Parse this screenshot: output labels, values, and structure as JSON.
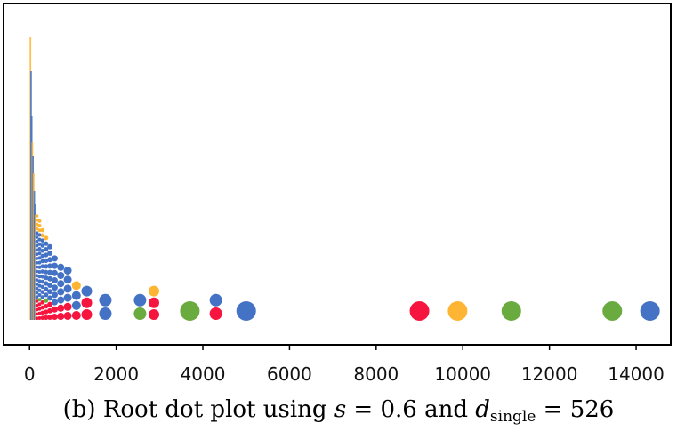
{
  "caption": {
    "prefix": "(b) Root dot plot using ",
    "s_var": "s",
    "s_eq": " = 0.6 and ",
    "d_var": "d",
    "d_sub": "single",
    "d_eq": " = 526"
  },
  "chart_data": {
    "type": "scatter",
    "xlim": [
      -600,
      14800
    ],
    "x_ticks": [
      0,
      2000,
      4000,
      6000,
      8000,
      10000,
      12000,
      14000
    ],
    "x_tick_labels": [
      "0",
      "2000",
      "4000",
      "6000",
      "8000",
      "10000",
      "12000",
      "14000"
    ],
    "y_axis_visible": false,
    "grid": false,
    "colors": {
      "blue": "#4472C4",
      "red": "#F5153E",
      "green": "#6AAB3F",
      "orange": "#FFB534"
    },
    "columns": [
      {
        "x": 1750,
        "r": 7,
        "dots": [
          "blue",
          "blue"
        ]
      },
      {
        "x": 2550,
        "r": 7,
        "dots": [
          "green",
          "blue"
        ]
      },
      {
        "x": 2870,
        "r": 6,
        "dots": [
          "red",
          "red",
          "orange"
        ]
      },
      {
        "x": 3700,
        "r": 11,
        "dots": [
          "green"
        ]
      },
      {
        "x": 4300,
        "r": 7,
        "dots": [
          "red",
          "blue"
        ]
      },
      {
        "x": 5000,
        "r": 11,
        "dots": [
          "blue"
        ]
      },
      {
        "x": 9000,
        "r": 11,
        "dots": [
          "red"
        ]
      },
      {
        "x": 9880,
        "r": 11,
        "dots": [
          "orange"
        ]
      },
      {
        "x": 11120,
        "r": 11,
        "dots": [
          "green"
        ]
      },
      {
        "x": 13450,
        "r": 11,
        "dots": [
          "green"
        ]
      },
      {
        "x": 14320,
        "r": 11,
        "dots": [
          "blue"
        ]
      }
    ],
    "dense_columns": [
      {
        "x": 1320,
        "r": 6,
        "dots": [
          "red",
          "red",
          "blue"
        ]
      },
      {
        "x": 1080,
        "r": 5,
        "dots": [
          "red",
          "blue",
          "blue",
          "orange"
        ]
      },
      {
        "x": 880,
        "r": 4.5,
        "dots": [
          "red",
          "red",
          "blue",
          "blue",
          "blue",
          "blue"
        ]
      },
      {
        "x": 720,
        "r": 4,
        "dots": [
          "red",
          "red",
          "blue",
          "blue",
          "blue",
          "blue",
          "blue"
        ]
      },
      {
        "x": 580,
        "r": 3.5,
        "dots": [
          "red",
          "red",
          "blue",
          "blue",
          "blue",
          "blue",
          "blue",
          "blue",
          "blue"
        ]
      },
      {
        "x": 470,
        "r": 3,
        "dots": [
          "red",
          "red",
          "red",
          "blue",
          "blue",
          "blue",
          "blue",
          "blue",
          "blue",
          "blue",
          "blue",
          "blue"
        ]
      },
      {
        "x": 380,
        "r": 2.6,
        "dots": [
          "red",
          "red",
          "red",
          "green",
          "blue",
          "blue",
          "blue",
          "blue",
          "blue",
          "blue",
          "blue",
          "blue",
          "blue",
          "blue",
          "orange"
        ]
      },
      {
        "x": 300,
        "r": 2.3,
        "dots": [
          "red",
          "red",
          "red",
          "red",
          "blue",
          "blue",
          "blue",
          "blue",
          "blue",
          "blue",
          "blue",
          "blue",
          "blue",
          "blue",
          "blue",
          "blue",
          "orange",
          "orange"
        ]
      },
      {
        "x": 230,
        "r": 2,
        "dots": [
          "red",
          "red",
          "red",
          "red",
          "green",
          "blue",
          "blue",
          "blue",
          "blue",
          "blue",
          "blue",
          "blue",
          "blue",
          "blue",
          "blue",
          "blue",
          "blue",
          "blue",
          "blue",
          "orange",
          "orange",
          "orange"
        ]
      },
      {
        "x": 170,
        "r": 1.8,
        "dots": [
          "red",
          "red",
          "red",
          "red",
          "red",
          "blue",
          "blue",
          "blue",
          "blue",
          "blue",
          "blue",
          "blue",
          "blue",
          "blue",
          "blue",
          "blue",
          "blue",
          "blue",
          "blue",
          "blue",
          "blue",
          "orange",
          "orange",
          "orange",
          "orange"
        ]
      }
    ],
    "spikes": [
      {
        "x": 20,
        "height": 318,
        "color": "orange"
      },
      {
        "x": 35,
        "height": 280,
        "color": "blue"
      },
      {
        "x": 50,
        "height": 230,
        "color": "blue"
      },
      {
        "x": 65,
        "height": 200,
        "color": "orange"
      },
      {
        "x": 80,
        "height": 185,
        "color": "blue"
      },
      {
        "x": 95,
        "height": 165,
        "color": "orange"
      },
      {
        "x": 110,
        "height": 145,
        "color": "blue"
      },
      {
        "x": 125,
        "height": 130,
        "color": "blue"
      },
      {
        "x": 140,
        "height": 118,
        "color": "orange"
      }
    ]
  }
}
